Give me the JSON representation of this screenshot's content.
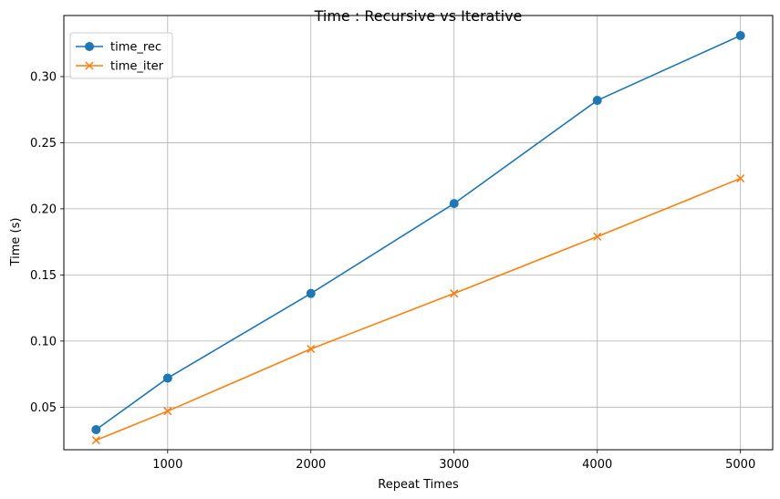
{
  "chart_data": {
    "type": "line",
    "title": "Time : Recursive vs Iterative",
    "xlabel": "Repeat Times",
    "ylabel": "Time (s)",
    "x": [
      500,
      1000,
      2000,
      3000,
      4000,
      5000
    ],
    "xlim": [
      275,
      5225
    ],
    "ylim": [
      0.0178,
      0.3462
    ],
    "xticks": [
      1000,
      2000,
      3000,
      4000,
      5000
    ],
    "xtick_labels": [
      "1000",
      "2000",
      "3000",
      "4000",
      "5000"
    ],
    "yticks": [
      0.05,
      0.1,
      0.15,
      0.2,
      0.25,
      0.3
    ],
    "ytick_labels": [
      "0.05",
      "0.10",
      "0.15",
      "0.20",
      "0.25",
      "0.30"
    ],
    "grid": true,
    "legend_position": "top-left",
    "series": [
      {
        "name": "time_rec",
        "color": "#1f77b4",
        "marker": "circle",
        "values": [
          0.033,
          0.072,
          0.136,
          0.204,
          0.282,
          0.331
        ]
      },
      {
        "name": "time_iter",
        "color": "#ff7f0e",
        "marker": "x",
        "values": [
          0.025,
          0.047,
          0.094,
          0.136,
          0.179,
          0.223
        ]
      }
    ]
  }
}
